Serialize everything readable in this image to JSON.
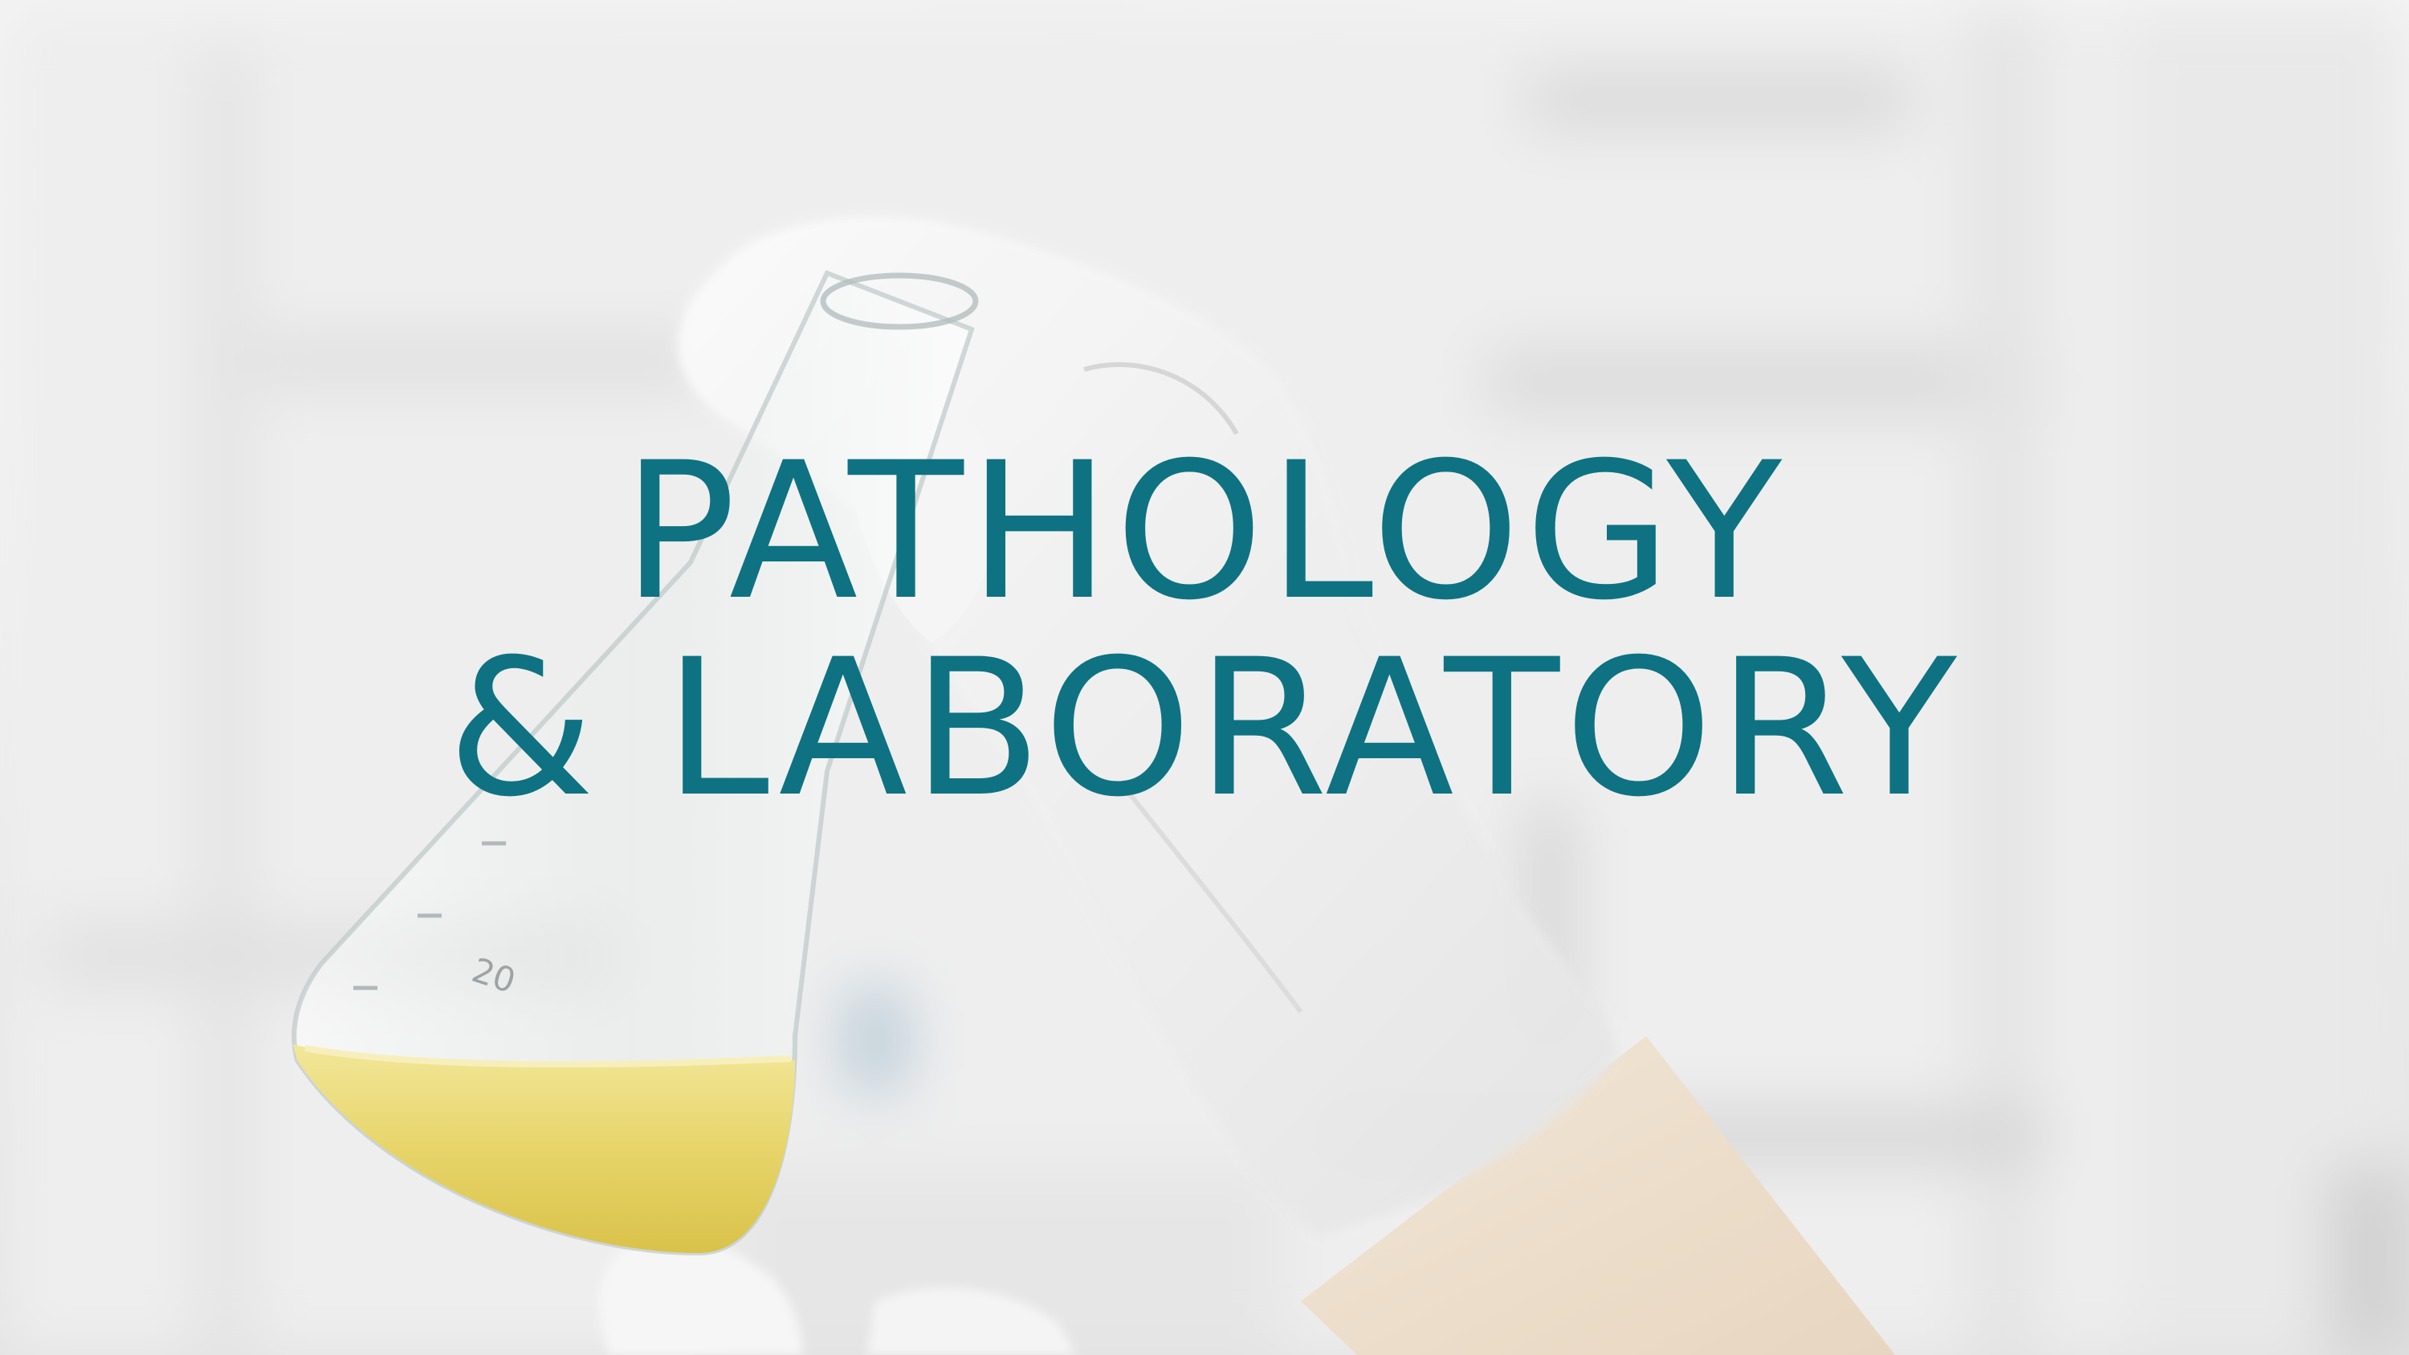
{
  "hero": {
    "title_line_1": "PATHOLOGY",
    "title_line_2": "& LABORATORY",
    "title_color": "#0e7282"
  },
  "background_photo": {
    "subject": "gloved-hand-holding-erlenmeyer-flask",
    "flask_markings": [
      "20"
    ],
    "liquid_color": "#e6d36a"
  }
}
